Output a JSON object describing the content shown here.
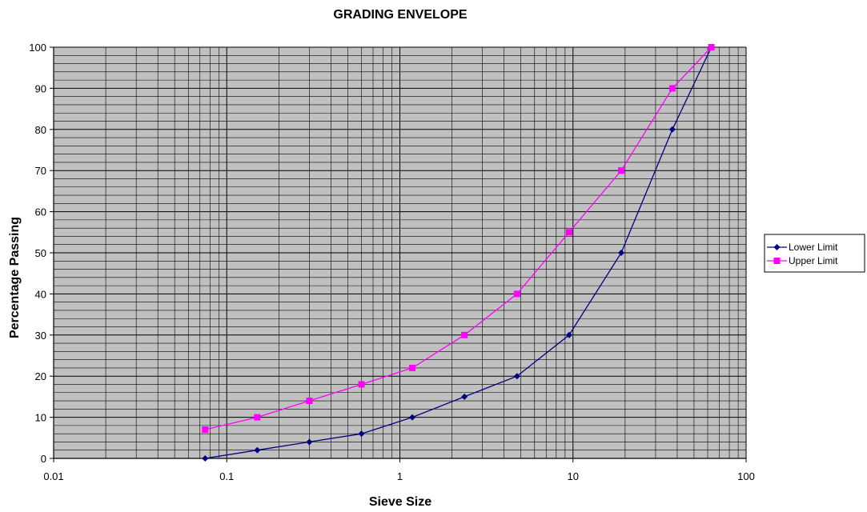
{
  "chart_data": {
    "type": "line",
    "title": "GRADING ENVELOPE",
    "xlabel": "Sieve Size",
    "ylabel": "Percentage Passing",
    "xscale": "log",
    "xlim": [
      0.01,
      100
    ],
    "ylim": [
      0,
      100
    ],
    "x_ticks": [
      "0.01",
      "0.1",
      "1",
      "10",
      "100"
    ],
    "y_ticks": [
      "0",
      "10",
      "20",
      "30",
      "40",
      "50",
      "60",
      "70",
      "80",
      "90",
      "100"
    ],
    "grid": true,
    "plot_background": "#c0c0c0",
    "legend_position": "right",
    "series": [
      {
        "name": "Lower Limit",
        "color": "#000080",
        "marker": "diamond",
        "x": [
          0.075,
          0.15,
          0.3,
          0.6,
          1.18,
          2.36,
          4.75,
          9.5,
          19,
          37.5,
          63
        ],
        "y": [
          0,
          2,
          4,
          6,
          10,
          15,
          20,
          30,
          50,
          80,
          100
        ]
      },
      {
        "name": "Upper Limit",
        "color": "#ff00ff",
        "marker": "square",
        "x": [
          0.075,
          0.15,
          0.3,
          0.6,
          1.18,
          2.36,
          4.75,
          9.5,
          19,
          37.5,
          63
        ],
        "y": [
          7,
          10,
          14,
          18,
          22,
          30,
          40,
          55,
          70,
          90,
          100
        ]
      }
    ]
  }
}
